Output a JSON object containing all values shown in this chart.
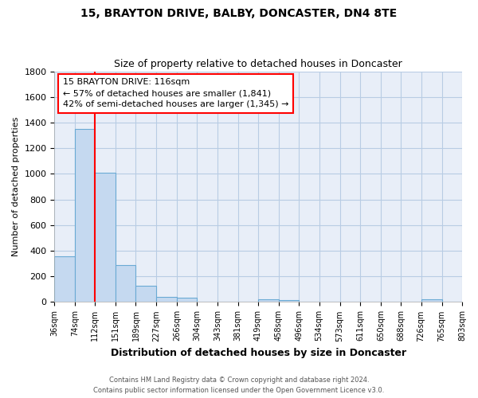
{
  "title": "15, BRAYTON DRIVE, BALBY, DONCASTER, DN4 8TE",
  "subtitle": "Size of property relative to detached houses in Doncaster",
  "xlabel": "Distribution of detached houses by size in Doncaster",
  "ylabel": "Number of detached properties",
  "bar_edges": [
    36,
    74,
    112,
    151,
    189,
    227,
    266,
    304,
    343,
    381,
    419,
    458,
    496,
    534,
    573,
    611,
    650,
    688,
    726,
    765,
    803
  ],
  "bar_heights": [
    355,
    1350,
    1010,
    290,
    130,
    40,
    35,
    0,
    0,
    0,
    20,
    15,
    0,
    0,
    0,
    0,
    0,
    0,
    20,
    0,
    0
  ],
  "bar_color": "#c5d9f0",
  "bar_edge_color": "#6aaad4",
  "red_line_x": 112,
  "ylim": [
    0,
    1800
  ],
  "yticks": [
    0,
    200,
    400,
    600,
    800,
    1000,
    1200,
    1400,
    1600,
    1800
  ],
  "annotation_title": "15 BRAYTON DRIVE: 116sqm",
  "annotation_line1": "← 57% of detached houses are smaller (1,841)",
  "annotation_line2": "42% of semi-detached houses are larger (1,345) →",
  "footer1": "Contains HM Land Registry data © Crown copyright and database right 2024.",
  "footer2": "Contains public sector information licensed under the Open Government Licence v3.0.",
  "background_color": "#e8eef8",
  "plot_bg_color": "#e8eef8",
  "grid_color": "#b8cce4"
}
